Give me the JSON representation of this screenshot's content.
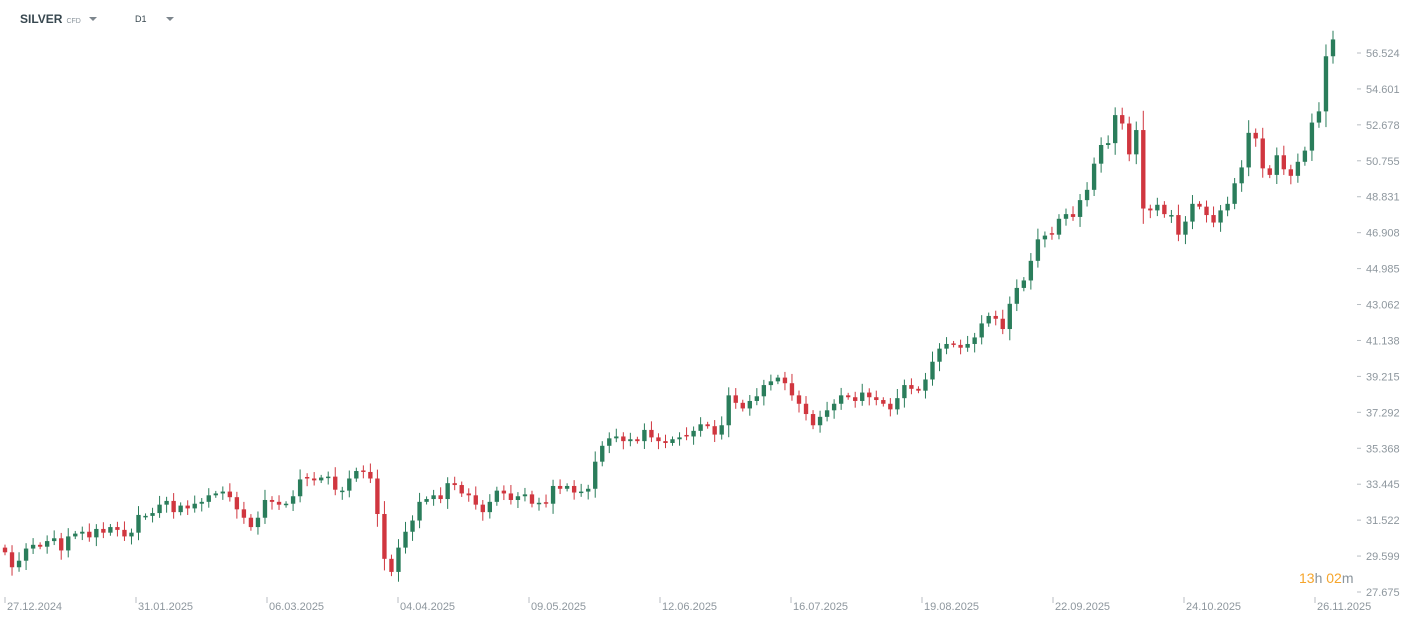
{
  "toolbar": {
    "symbol": "SILVER",
    "symbol_type": "CFD",
    "timeframe": "D1"
  },
  "countdown": {
    "hours": "13",
    "hours_unit": "h",
    "minutes": "02",
    "minutes_unit": "m"
  },
  "colors": {
    "up": "#2a7d5b",
    "down": "#d0363f",
    "axis_text": "#8e979e",
    "countdown": "#f6a52b"
  },
  "chart_data": {
    "type": "candlestick",
    "title": "",
    "xlabel": "",
    "ylabel": "",
    "ylim": [
      27.675,
      57.9
    ],
    "y_ticks": [
      "56.524",
      "54.601",
      "52.678",
      "50.755",
      "48.831",
      "46.908",
      "44.985",
      "43.062",
      "41.138",
      "39.215",
      "37.292",
      "35.368",
      "33.445",
      "31.522",
      "29.599",
      "27.675"
    ],
    "x_ticks": [
      "27.12.2024",
      "31.01.2025",
      "06.03.2025",
      "04.04.2025",
      "09.05.2025",
      "12.06.2025",
      "16.07.2025",
      "19.08.2025",
      "22.09.2025",
      "24.10.2025",
      "26.11.2025"
    ],
    "grid": false,
    "closes": [
      29.8,
      29.0,
      29.35,
      30.0,
      30.2,
      30.1,
      30.4,
      30.55,
      29.9,
      30.65,
      30.8,
      30.9,
      30.6,
      31.05,
      30.85,
      31.15,
      31.0,
      30.65,
      30.85,
      31.8,
      31.75,
      31.9,
      32.35,
      32.55,
      31.95,
      32.3,
      32.15,
      32.4,
      32.5,
      32.85,
      32.95,
      33.05,
      32.75,
      32.1,
      31.65,
      31.15,
      31.65,
      32.6,
      32.5,
      32.35,
      32.4,
      32.8,
      33.7,
      33.75,
      33.65,
      33.8,
      33.85,
      33.15,
      33.1,
      33.75,
      34.15,
      34.1,
      33.75,
      31.85,
      29.45,
      28.75,
      30.05,
      30.9,
      31.5,
      32.5,
      32.65,
      32.85,
      32.65,
      33.5,
      33.4,
      32.95,
      32.85,
      32.35,
      31.95,
      32.5,
      33.1,
      32.95,
      32.6,
      32.8,
      32.9,
      32.4,
      32.45,
      32.4,
      33.35,
      33.2,
      33.35,
      33.0,
      33.05,
      33.2,
      34.65,
      35.5,
      35.9,
      36.0,
      35.75,
      35.85,
      35.75,
      36.35,
      35.95,
      35.75,
      35.65,
      35.85,
      35.95,
      36.0,
      36.3,
      36.65,
      36.55,
      36.1,
      36.6,
      38.2,
      37.8,
      37.5,
      37.9,
      38.15,
      38.75,
      38.95,
      39.15,
      38.85,
      38.2,
      37.75,
      37.2,
      36.6,
      37.05,
      37.4,
      37.75,
      38.2,
      38.1,
      37.9,
      38.35,
      38.1,
      37.95,
      37.75,
      37.45,
      38.05,
      38.75,
      38.55,
      38.45,
      39.05,
      40.0,
      40.7,
      40.95,
      40.9,
      40.75,
      40.95,
      41.3,
      42.05,
      42.45,
      42.3,
      41.75,
      43.1,
      43.95,
      44.35,
      45.4,
      46.55,
      46.75,
      46.8,
      47.65,
      47.9,
      47.75,
      48.65,
      49.2,
      50.6,
      51.6,
      51.7,
      53.2,
      52.75,
      51.1,
      52.4,
      48.2,
      48.1,
      48.4,
      47.9,
      47.85,
      46.8,
      47.5,
      48.45,
      48.3,
      47.85,
      47.45,
      48.1,
      48.45,
      49.55,
      50.4,
      52.25,
      51.95,
      50.35,
      50.0,
      51.05,
      50.3,
      49.95,
      50.7,
      51.3,
      52.8,
      53.4,
      56.35,
      57.25
    ]
  }
}
